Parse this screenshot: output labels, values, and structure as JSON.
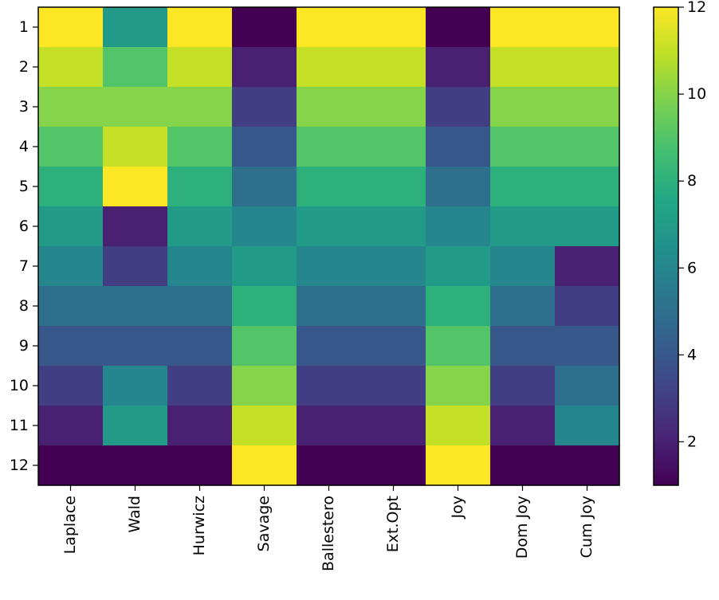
{
  "chart_data": {
    "type": "heatmap",
    "title": "",
    "xlabel": "",
    "ylabel": "",
    "columns": [
      "Laplace",
      "Wald",
      "Hurwicz",
      "Savage",
      "Ballestero",
      "Ext.Opt",
      "Joy",
      "Dom Joy",
      "Cum Joy"
    ],
    "rows": [
      "1",
      "2",
      "3",
      "4",
      "5",
      "6",
      "7",
      "8",
      "9",
      "10",
      "11",
      "12"
    ],
    "values": [
      [
        12,
        7,
        12,
        1,
        12,
        12,
        1,
        12,
        12
      ],
      [
        11,
        9,
        11,
        2,
        11,
        11,
        2,
        11,
        11
      ],
      [
        10,
        10,
        10,
        3,
        10,
        10,
        3,
        10,
        10
      ],
      [
        9,
        11,
        9,
        4,
        9,
        9,
        4,
        9,
        9
      ],
      [
        8,
        12,
        8,
        5,
        8,
        8,
        5,
        8,
        8
      ],
      [
        7,
        2,
        7,
        6,
        7,
        7,
        6,
        7,
        7
      ],
      [
        6,
        3,
        6,
        7,
        6,
        6,
        7,
        6,
        2
      ],
      [
        5,
        5,
        5,
        8,
        5,
        5,
        8,
        5,
        3
      ],
      [
        4,
        4,
        4,
        9,
        4,
        4,
        9,
        4,
        4
      ],
      [
        3,
        6,
        3,
        10,
        3,
        3,
        10,
        3,
        5
      ],
      [
        2,
        7,
        2,
        11,
        2,
        2,
        11,
        2,
        6
      ],
      [
        1,
        1,
        1,
        12,
        1,
        1,
        12,
        1,
        1
      ]
    ],
    "colormap": "viridis",
    "vmin": 1,
    "vmax": 12,
    "colorbar": {
      "ticks": [
        2,
        4,
        6,
        8,
        10,
        12
      ],
      "tick_labels": [
        "2",
        "4",
        "6",
        "8",
        "10",
        "12"
      ]
    },
    "grid": false
  }
}
